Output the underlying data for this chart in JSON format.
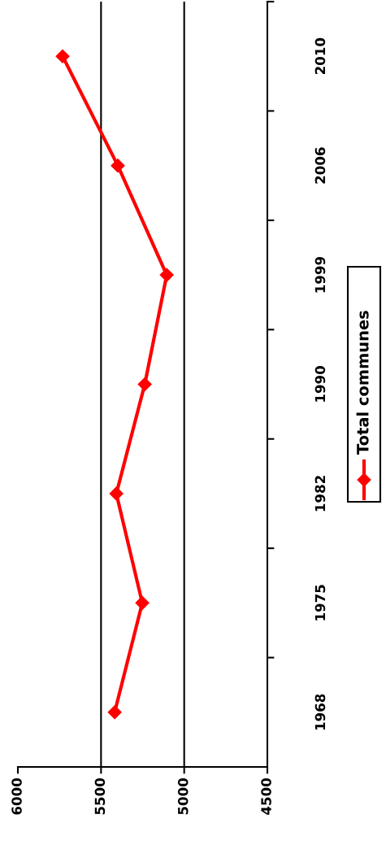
{
  "chart_data": {
    "type": "line",
    "orientation": "horizontal",
    "categories": [
      "2010",
      "2006",
      "1999",
      "1990",
      "1982",
      "1975",
      "1968"
    ],
    "series": [
      {
        "name": "Total communes",
        "color": "#ff0000",
        "values": [
          5731,
          5399,
          5105,
          5237,
          5408,
          5252,
          5418
        ]
      }
    ],
    "xlim": [
      6000,
      4500
    ],
    "xticks": [
      6000,
      5500,
      5000,
      4500
    ],
    "grid": "x",
    "legend": "right",
    "marker": "diamond",
    "line_style": "solid"
  }
}
